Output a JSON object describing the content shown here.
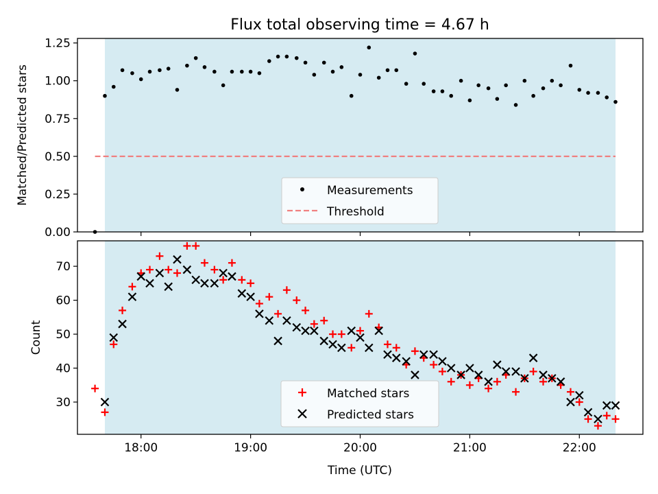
{
  "figure": {
    "title": "Flux total observing time = 4.67 h",
    "xlabel": "Time (UTC)",
    "x_ticks": [
      {
        "value": 18.0,
        "label": "18:00"
      },
      {
        "value": 19.0,
        "label": "19:00"
      },
      {
        "value": 20.0,
        "label": "20:00"
      },
      {
        "value": 21.0,
        "label": "21:00"
      },
      {
        "value": 22.0,
        "label": "22:00"
      }
    ],
    "xlim": [
      17.42,
      22.58
    ],
    "shaded_span": {
      "x0": 17.67,
      "x1": 22.33,
      "color": "#add8e6"
    }
  },
  "chart_data": [
    {
      "type": "scatter",
      "panel": "top",
      "ylabel": "Matched/Predicted stars",
      "ylim": [
        0.0,
        1.28
      ],
      "y_ticks": [
        {
          "value": 0.0,
          "label": "0.00"
        },
        {
          "value": 0.25,
          "label": "0.25"
        },
        {
          "value": 0.5,
          "label": "0.50"
        },
        {
          "value": 0.75,
          "label": "0.75"
        },
        {
          "value": 1.0,
          "label": "1.00"
        },
        {
          "value": 1.25,
          "label": "1.25"
        }
      ],
      "legend": {
        "placement": "bottom-center",
        "entries": [
          {
            "label": "Measurements",
            "marker": "dot",
            "color": "#000000"
          },
          {
            "label": "Threshold",
            "marker": "dashed-line",
            "color": "#f08080"
          }
        ]
      },
      "threshold": {
        "name": "Threshold",
        "y": 0.5,
        "x0": 17.58,
        "x1": 22.33,
        "color": "#f08080"
      },
      "series": [
        {
          "name": "Measurements",
          "color": "#000000",
          "points": [
            [
              17.58,
              0.0
            ],
            [
              17.67,
              0.9
            ],
            [
              17.75,
              0.96
            ],
            [
              17.83,
              1.07
            ],
            [
              17.92,
              1.05
            ],
            [
              18.0,
              1.01
            ],
            [
              18.08,
              1.06
            ],
            [
              18.17,
              1.07
            ],
            [
              18.25,
              1.08
            ],
            [
              18.33,
              0.94
            ],
            [
              18.42,
              1.1
            ],
            [
              18.5,
              1.15
            ],
            [
              18.58,
              1.09
            ],
            [
              18.67,
              1.06
            ],
            [
              18.75,
              0.97
            ],
            [
              18.83,
              1.06
            ],
            [
              18.92,
              1.06
            ],
            [
              19.0,
              1.06
            ],
            [
              19.08,
              1.05
            ],
            [
              19.17,
              1.13
            ],
            [
              19.25,
              1.16
            ],
            [
              19.33,
              1.16
            ],
            [
              19.42,
              1.15
            ],
            [
              19.5,
              1.12
            ],
            [
              19.58,
              1.04
            ],
            [
              19.67,
              1.12
            ],
            [
              19.75,
              1.06
            ],
            [
              19.83,
              1.09
            ],
            [
              19.92,
              0.9
            ],
            [
              20.0,
              1.04
            ],
            [
              20.08,
              1.22
            ],
            [
              20.17,
              1.02
            ],
            [
              20.25,
              1.07
            ],
            [
              20.33,
              1.07
            ],
            [
              20.42,
              0.98
            ],
            [
              20.5,
              1.18
            ],
            [
              20.58,
              0.98
            ],
            [
              20.67,
              0.93
            ],
            [
              20.75,
              0.93
            ],
            [
              20.83,
              0.9
            ],
            [
              20.92,
              1.0
            ],
            [
              21.0,
              0.87
            ],
            [
              21.08,
              0.97
            ],
            [
              21.17,
              0.95
            ],
            [
              21.25,
              0.88
            ],
            [
              21.33,
              0.97
            ],
            [
              21.42,
              0.84
            ],
            [
              21.5,
              1.0
            ],
            [
              21.58,
              0.9
            ],
            [
              21.67,
              0.95
            ],
            [
              21.75,
              1.0
            ],
            [
              21.83,
              0.97
            ],
            [
              21.92,
              1.1
            ],
            [
              22.0,
              0.94
            ],
            [
              22.08,
              0.92
            ],
            [
              22.17,
              0.92
            ],
            [
              22.25,
              0.89
            ],
            [
              22.33,
              0.86
            ]
          ]
        }
      ]
    },
    {
      "type": "scatter",
      "panel": "bottom",
      "ylabel": "Count",
      "ylim": [
        20.5,
        77.5
      ],
      "y_ticks": [
        {
          "value": 30,
          "label": "30"
        },
        {
          "value": 40,
          "label": "40"
        },
        {
          "value": 50,
          "label": "50"
        },
        {
          "value": 60,
          "label": "60"
        },
        {
          "value": 70,
          "label": "70"
        }
      ],
      "legend": {
        "placement": "bottom-center",
        "entries": [
          {
            "label": "Matched stars",
            "marker": "plus",
            "color": "#ff0000"
          },
          {
            "label": "Predicted stars",
            "marker": "x",
            "color": "#000000"
          }
        ]
      },
      "series": [
        {
          "name": "Matched stars",
          "color": "#ff0000",
          "points": [
            [
              17.58,
              34
            ],
            [
              17.67,
              27
            ],
            [
              17.75,
              47
            ],
            [
              17.83,
              57
            ],
            [
              17.92,
              64
            ],
            [
              18.0,
              68
            ],
            [
              18.08,
              69
            ],
            [
              18.17,
              73
            ],
            [
              18.25,
              69
            ],
            [
              18.33,
              68
            ],
            [
              18.42,
              76
            ],
            [
              18.5,
              76
            ],
            [
              18.58,
              71
            ],
            [
              18.67,
              69
            ],
            [
              18.75,
              66
            ],
            [
              18.83,
              71
            ],
            [
              18.92,
              66
            ],
            [
              19.0,
              65
            ],
            [
              19.08,
              59
            ],
            [
              19.17,
              61
            ],
            [
              19.25,
              56
            ],
            [
              19.33,
              63
            ],
            [
              19.42,
              60
            ],
            [
              19.5,
              57
            ],
            [
              19.58,
              53
            ],
            [
              19.67,
              54
            ],
            [
              19.75,
              50
            ],
            [
              19.83,
              50
            ],
            [
              19.92,
              46
            ],
            [
              20.0,
              51
            ],
            [
              20.08,
              56
            ],
            [
              20.17,
              52
            ],
            [
              20.25,
              47
            ],
            [
              20.33,
              46
            ],
            [
              20.42,
              41
            ],
            [
              20.5,
              45
            ],
            [
              20.58,
              43
            ],
            [
              20.67,
              41
            ],
            [
              20.75,
              39
            ],
            [
              20.83,
              36
            ],
            [
              20.92,
              38
            ],
            [
              21.0,
              35
            ],
            [
              21.08,
              37
            ],
            [
              21.17,
              34
            ],
            [
              21.25,
              36
            ],
            [
              21.33,
              38
            ],
            [
              21.42,
              33
            ],
            [
              21.5,
              37
            ],
            [
              21.58,
              39
            ],
            [
              21.67,
              36
            ],
            [
              21.75,
              37
            ],
            [
              21.83,
              35
            ],
            [
              21.92,
              33
            ],
            [
              22.0,
              30
            ],
            [
              22.08,
              25
            ],
            [
              22.17,
              23
            ],
            [
              22.25,
              26
            ],
            [
              22.33,
              25
            ]
          ]
        },
        {
          "name": "Predicted stars",
          "color": "#000000",
          "points": [
            [
              17.67,
              30
            ],
            [
              17.75,
              49
            ],
            [
              17.83,
              53
            ],
            [
              17.92,
              61
            ],
            [
              18.0,
              67
            ],
            [
              18.08,
              65
            ],
            [
              18.17,
              68
            ],
            [
              18.25,
              64
            ],
            [
              18.33,
              72
            ],
            [
              18.42,
              69
            ],
            [
              18.5,
              66
            ],
            [
              18.58,
              65
            ],
            [
              18.67,
              65
            ],
            [
              18.75,
              68
            ],
            [
              18.83,
              67
            ],
            [
              18.92,
              62
            ],
            [
              19.0,
              61
            ],
            [
              19.08,
              56
            ],
            [
              19.17,
              54
            ],
            [
              19.25,
              48
            ],
            [
              19.33,
              54
            ],
            [
              19.42,
              52
            ],
            [
              19.5,
              51
            ],
            [
              19.58,
              51
            ],
            [
              19.67,
              48
            ],
            [
              19.75,
              47
            ],
            [
              19.83,
              46
            ],
            [
              19.92,
              51
            ],
            [
              20.0,
              49
            ],
            [
              20.08,
              46
            ],
            [
              20.17,
              51
            ],
            [
              20.25,
              44
            ],
            [
              20.33,
              43
            ],
            [
              20.42,
              42
            ],
            [
              20.5,
              38
            ],
            [
              20.58,
              44
            ],
            [
              20.67,
              44
            ],
            [
              20.75,
              42
            ],
            [
              20.83,
              40
            ],
            [
              20.92,
              38
            ],
            [
              21.0,
              40
            ],
            [
              21.08,
              38
            ],
            [
              21.17,
              36
            ],
            [
              21.25,
              41
            ],
            [
              21.33,
              39
            ],
            [
              21.42,
              39
            ],
            [
              21.5,
              37
            ],
            [
              21.58,
              43
            ],
            [
              21.67,
              38
            ],
            [
              21.75,
              37
            ],
            [
              21.83,
              36
            ],
            [
              21.92,
              30
            ],
            [
              22.0,
              32
            ],
            [
              22.08,
              27
            ],
            [
              22.17,
              25
            ],
            [
              22.25,
              29
            ],
            [
              22.33,
              29
            ]
          ]
        }
      ]
    }
  ]
}
